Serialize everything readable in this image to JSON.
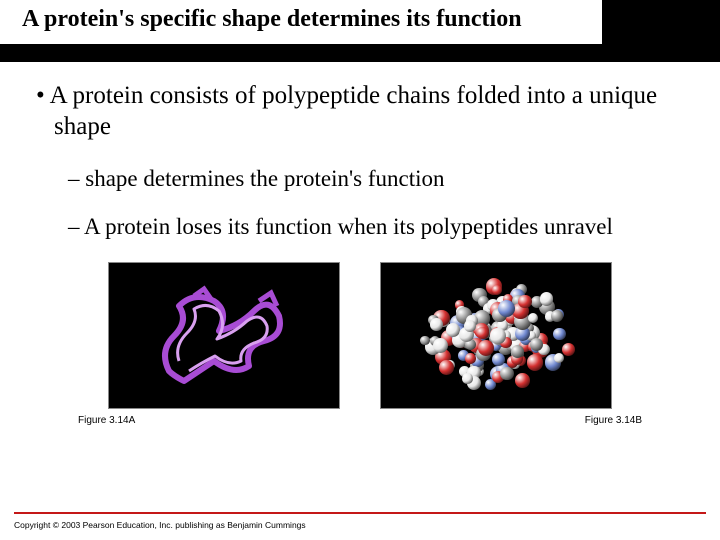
{
  "title": "A protein's specific shape determines its function",
  "bullets": {
    "main": "A protein consists of polypeptide chains folded into a unique shape",
    "sub1": "shape determines the protein's function",
    "sub2": "A protein loses its function when its polypeptides unravel"
  },
  "figures": {
    "a_label": "Figure 3.14A",
    "b_label": "Figure 3.14B",
    "ribbon_color": "#a84cd4",
    "ribbon_highlight": "#d9a0f0",
    "sphere_colors": {
      "white": "#e8e8e8",
      "red": "#d43030",
      "blue": "#7088d0",
      "gray": "#909090"
    }
  },
  "copyright": "Copyright © 2003 Pearson Education, Inc. publishing as Benjamin Cummings",
  "colors": {
    "rule": "#c41818",
    "title_bar": "#000000"
  }
}
